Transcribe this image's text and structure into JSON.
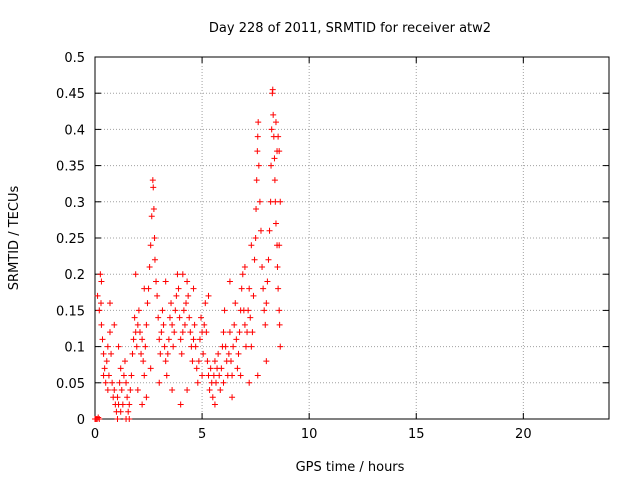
{
  "chart_data": {
    "type": "scatter",
    "title": "Day 228 of 2011, SRMTID for receiver atw2",
    "xlabel": "GPS time / hours",
    "ylabel": "SRMTID / TECUs",
    "xlim": [
      0,
      24
    ],
    "ylim": [
      0,
      0.5
    ],
    "xticks": [
      0,
      5,
      10,
      15,
      20
    ],
    "xtick_labels": [
      "0",
      "5",
      "10",
      "15",
      "20"
    ],
    "yticks": [
      0,
      0.05,
      0.1,
      0.15,
      0.2,
      0.25,
      0.3,
      0.35,
      0.4,
      0.45,
      0.5
    ],
    "ytick_labels": [
      "0",
      "0.05",
      "0.1",
      "0.15",
      "0.2",
      "0.25",
      "0.3",
      "0.35",
      "0.4",
      "0.45",
      "0.5"
    ],
    "grid": true,
    "marker": "+",
    "color": "#ff0000",
    "series": [
      {
        "name": "atw2",
        "points": [
          [
            0.0,
            0.0
          ],
          [
            0.05,
            0.0
          ],
          [
            0.1,
            0.0
          ],
          [
            0.15,
            0.002
          ],
          [
            0.2,
            0.0
          ],
          [
            0.12,
            0.17
          ],
          [
            0.2,
            0.15
          ],
          [
            0.25,
            0.2
          ],
          [
            0.3,
            0.19
          ],
          [
            0.28,
            0.16
          ],
          [
            0.35,
            0.11
          ],
          [
            0.4,
            0.09
          ],
          [
            0.45,
            0.07
          ],
          [
            0.5,
            0.05
          ],
          [
            0.55,
            0.08
          ],
          [
            0.6,
            0.1
          ],
          [
            0.65,
            0.06
          ],
          [
            0.7,
            0.12
          ],
          [
            0.75,
            0.09
          ],
          [
            0.8,
            0.05
          ],
          [
            0.85,
            0.03
          ],
          [
            0.9,
            0.04
          ],
          [
            0.95,
            0.02
          ],
          [
            1.0,
            0.01
          ],
          [
            1.05,
            0.03
          ],
          [
            1.1,
            0.02
          ],
          [
            1.15,
            0.05
          ],
          [
            1.2,
            0.07
          ],
          [
            1.25,
            0.04
          ],
          [
            1.3,
            0.02
          ],
          [
            1.35,
            0.06
          ],
          [
            1.4,
            0.08
          ],
          [
            1.45,
            0.05
          ],
          [
            1.5,
            0.03
          ],
          [
            1.55,
            0.01
          ],
          [
            1.6,
            0.02
          ],
          [
            1.65,
            0.04
          ],
          [
            1.7,
            0.06
          ],
          [
            1.75,
            0.09
          ],
          [
            1.8,
            0.11
          ],
          [
            1.85,
            0.14
          ],
          [
            1.9,
            0.12
          ],
          [
            1.95,
            0.1
          ],
          [
            2.0,
            0.13
          ],
          [
            2.05,
            0.15
          ],
          [
            2.1,
            0.12
          ],
          [
            2.15,
            0.09
          ],
          [
            2.2,
            0.11
          ],
          [
            2.25,
            0.08
          ],
          [
            2.3,
            0.06
          ],
          [
            2.35,
            0.1
          ],
          [
            2.4,
            0.13
          ],
          [
            2.45,
            0.16
          ],
          [
            2.5,
            0.18
          ],
          [
            2.55,
            0.21
          ],
          [
            2.6,
            0.24
          ],
          [
            2.65,
            0.28
          ],
          [
            2.7,
            0.33
          ],
          [
            2.72,
            0.32
          ],
          [
            2.75,
            0.29
          ],
          [
            2.78,
            0.25
          ],
          [
            2.8,
            0.22
          ],
          [
            2.85,
            0.19
          ],
          [
            2.9,
            0.17
          ],
          [
            2.95,
            0.14
          ],
          [
            3.0,
            0.11
          ],
          [
            3.05,
            0.09
          ],
          [
            3.1,
            0.12
          ],
          [
            3.15,
            0.15
          ],
          [
            3.2,
            0.13
          ],
          [
            3.25,
            0.1
          ],
          [
            3.3,
            0.08
          ],
          [
            3.35,
            0.06
          ],
          [
            3.4,
            0.09
          ],
          [
            3.45,
            0.11
          ],
          [
            3.5,
            0.14
          ],
          [
            3.55,
            0.16
          ],
          [
            3.6,
            0.13
          ],
          [
            3.65,
            0.1
          ],
          [
            3.7,
            0.12
          ],
          [
            3.75,
            0.15
          ],
          [
            3.8,
            0.17
          ],
          [
            3.85,
            0.2
          ],
          [
            3.9,
            0.18
          ],
          [
            3.95,
            0.14
          ],
          [
            4.0,
            0.11
          ],
          [
            4.05,
            0.09
          ],
          [
            4.1,
            0.12
          ],
          [
            4.15,
            0.15
          ],
          [
            4.2,
            0.13
          ],
          [
            4.25,
            0.16
          ],
          [
            4.3,
            0.19
          ],
          [
            4.35,
            0.17
          ],
          [
            4.4,
            0.14
          ],
          [
            4.45,
            0.12
          ],
          [
            4.5,
            0.1
          ],
          [
            4.55,
            0.08
          ],
          [
            4.6,
            0.11
          ],
          [
            4.65,
            0.13
          ],
          [
            4.7,
            0.1
          ],
          [
            4.75,
            0.07
          ],
          [
            4.8,
            0.05
          ],
          [
            4.85,
            0.08
          ],
          [
            4.9,
            0.11
          ],
          [
            4.95,
            0.14
          ],
          [
            5.0,
            0.12
          ],
          [
            5.05,
            0.09
          ],
          [
            5.1,
            0.13
          ],
          [
            5.15,
            0.16
          ],
          [
            5.2,
            0.12
          ],
          [
            5.25,
            0.08
          ],
          [
            5.3,
            0.06
          ],
          [
            5.35,
            0.04
          ],
          [
            5.4,
            0.07
          ],
          [
            5.45,
            0.05
          ],
          [
            5.5,
            0.03
          ],
          [
            5.55,
            0.06
          ],
          [
            5.6,
            0.08
          ],
          [
            5.65,
            0.05
          ],
          [
            5.7,
            0.07
          ],
          [
            5.75,
            0.09
          ],
          [
            5.8,
            0.06
          ],
          [
            5.85,
            0.04
          ],
          [
            5.9,
            0.07
          ],
          [
            5.95,
            0.1
          ],
          [
            6.0,
            0.12
          ],
          [
            6.05,
            0.15
          ],
          [
            6.1,
            0.1
          ],
          [
            6.15,
            0.08
          ],
          [
            6.2,
            0.06
          ],
          [
            6.25,
            0.09
          ],
          [
            6.3,
            0.12
          ],
          [
            6.35,
            0.08
          ],
          [
            6.4,
            0.06
          ],
          [
            6.45,
            0.1
          ],
          [
            6.5,
            0.13
          ],
          [
            6.55,
            0.16
          ],
          [
            6.6,
            0.11
          ],
          [
            6.65,
            0.07
          ],
          [
            6.7,
            0.09
          ],
          [
            6.75,
            0.12
          ],
          [
            6.8,
            0.15
          ],
          [
            6.85,
            0.18
          ],
          [
            6.9,
            0.2
          ],
          [
            6.95,
            0.15
          ],
          [
            7.0,
            0.13
          ],
          [
            7.05,
            0.1
          ],
          [
            7.1,
            0.12
          ],
          [
            7.15,
            0.15
          ],
          [
            7.2,
            0.18
          ],
          [
            7.25,
            0.14
          ],
          [
            7.3,
            0.1
          ],
          [
            7.35,
            0.12
          ],
          [
            7.4,
            0.17
          ],
          [
            7.45,
            0.22
          ],
          [
            7.5,
            0.25
          ],
          [
            7.52,
            0.29
          ],
          [
            7.55,
            0.33
          ],
          [
            7.58,
            0.37
          ],
          [
            7.6,
            0.39
          ],
          [
            7.62,
            0.41
          ],
          [
            7.65,
            0.35
          ],
          [
            7.7,
            0.3
          ],
          [
            7.75,
            0.26
          ],
          [
            7.8,
            0.21
          ],
          [
            7.85,
            0.18
          ],
          [
            7.9,
            0.15
          ],
          [
            7.95,
            0.13
          ],
          [
            8.0,
            0.16
          ],
          [
            8.05,
            0.19
          ],
          [
            8.1,
            0.22
          ],
          [
            8.15,
            0.26
          ],
          [
            8.2,
            0.3
          ],
          [
            8.22,
            0.35
          ],
          [
            8.25,
            0.4
          ],
          [
            8.28,
            0.45
          ],
          [
            8.3,
            0.455
          ],
          [
            8.32,
            0.42
          ],
          [
            8.35,
            0.39
          ],
          [
            8.38,
            0.36
          ],
          [
            8.4,
            0.33
          ],
          [
            8.42,
            0.3
          ],
          [
            8.45,
            0.27
          ],
          [
            8.5,
            0.24
          ],
          [
            8.52,
            0.21
          ],
          [
            8.55,
            0.18
          ],
          [
            8.6,
            0.15
          ],
          [
            8.62,
            0.13
          ],
          [
            8.65,
            0.1
          ],
          [
            8.5,
            0.37
          ],
          [
            8.55,
            0.39
          ],
          [
            8.45,
            0.41
          ],
          [
            0.3,
            0.13
          ],
          [
            0.4,
            0.06
          ],
          [
            0.6,
            0.04
          ],
          [
            1.05,
            0.0
          ],
          [
            1.2,
            0.01
          ],
          [
            1.45,
            0.0
          ],
          [
            1.6,
            0.0
          ],
          [
            2.0,
            0.04
          ],
          [
            2.2,
            0.02
          ],
          [
            2.4,
            0.03
          ],
          [
            2.6,
            0.07
          ],
          [
            3.0,
            0.05
          ],
          [
            3.6,
            0.04
          ],
          [
            4.0,
            0.02
          ],
          [
            4.3,
            0.04
          ],
          [
            5.0,
            0.06
          ],
          [
            5.6,
            0.02
          ],
          [
            6.0,
            0.05
          ],
          [
            6.4,
            0.03
          ],
          [
            6.8,
            0.06
          ],
          [
            7.2,
            0.05
          ],
          [
            7.6,
            0.06
          ],
          [
            8.0,
            0.08
          ],
          [
            0.7,
            0.16
          ],
          [
            0.9,
            0.13
          ],
          [
            1.1,
            0.1
          ],
          [
            1.9,
            0.2
          ],
          [
            2.3,
            0.18
          ],
          [
            3.3,
            0.19
          ],
          [
            4.1,
            0.2
          ],
          [
            4.6,
            0.18
          ],
          [
            5.3,
            0.17
          ],
          [
            6.3,
            0.19
          ],
          [
            7.0,
            0.21
          ],
          [
            7.3,
            0.24
          ],
          [
            8.6,
            0.24
          ],
          [
            8.65,
            0.3
          ],
          [
            8.6,
            0.37
          ]
        ]
      }
    ]
  }
}
